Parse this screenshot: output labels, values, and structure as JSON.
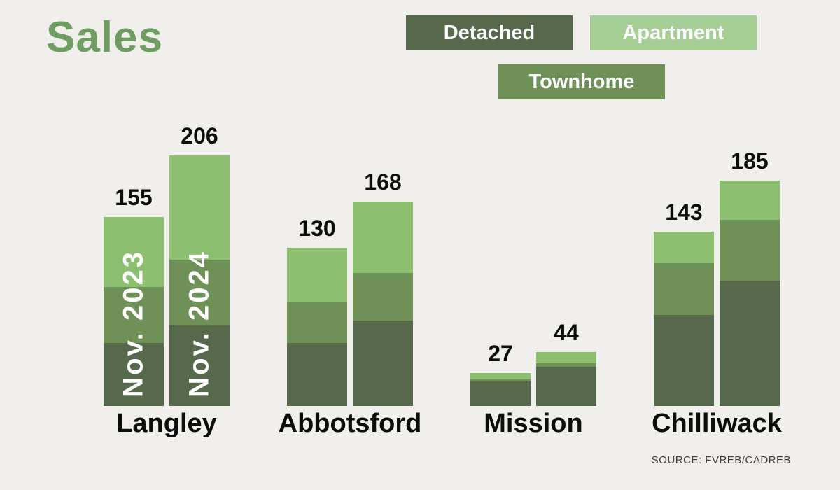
{
  "page": {
    "background": "#f0efec"
  },
  "title": {
    "text": "Sales",
    "color": "#6f9d62"
  },
  "legend": {
    "items": [
      {
        "label": "Detached",
        "color": "#57694b"
      },
      {
        "label": "Apartment",
        "color": "#a6cf96"
      },
      {
        "label": "Townhome",
        "color": "#6e9157"
      }
    ]
  },
  "source": {
    "text": "SOURCE: FVREB/CADREB"
  },
  "chart_data": {
    "type": "bar",
    "stacked": true,
    "title": "Sales",
    "legend_entries": [
      "Detached",
      "Apartment",
      "Townhome"
    ],
    "series_order_bottom_to_top": [
      "Detached",
      "Townhome",
      "Apartment"
    ],
    "series_colors": {
      "Detached": "#57694b",
      "Townhome": "#6e9157",
      "Apartment": "#8cbf70"
    },
    "x_categories": [
      "Langley",
      "Abbotsford",
      "Mission",
      "Chilliwack"
    ],
    "bar_periods": [
      "Nov. 2023",
      "Nov. 2024"
    ],
    "totals_shown": true,
    "groups": [
      {
        "city": "Langley",
        "bars": [
          {
            "period": "Nov. 2023",
            "total": 155,
            "in_bar_label": "Nov. 2023",
            "segments": {
              "Detached": 52,
              "Townhome": 46,
              "Apartment": 57
            }
          },
          {
            "period": "Nov. 2024",
            "total": 206,
            "in_bar_label": "Nov. 2024",
            "segments": {
              "Detached": 66,
              "Townhome": 54,
              "Apartment": 86
            }
          }
        ]
      },
      {
        "city": "Abbotsford",
        "bars": [
          {
            "period": "Nov. 2023",
            "total": 130,
            "segments": {
              "Detached": 52,
              "Townhome": 33,
              "Apartment": 45
            }
          },
          {
            "period": "Nov. 2024",
            "total": 168,
            "segments": {
              "Detached": 70,
              "Townhome": 39,
              "Apartment": 59
            }
          }
        ]
      },
      {
        "city": "Mission",
        "bars": [
          {
            "period": "Nov. 2023",
            "total": 27,
            "segments": {
              "Detached": 20,
              "Townhome": 2,
              "Apartment": 5
            }
          },
          {
            "period": "Nov. 2024",
            "total": 44,
            "segments": {
              "Detached": 32,
              "Townhome": 3,
              "Apartment": 9
            }
          }
        ]
      },
      {
        "city": "Chilliwack",
        "bars": [
          {
            "period": "Nov. 2023",
            "total": 143,
            "segments": {
              "Detached": 75,
              "Townhome": 42,
              "Apartment": 26
            }
          },
          {
            "period": "Nov. 2024",
            "total": 185,
            "segments": {
              "Detached": 103,
              "Townhome": 50,
              "Apartment": 32
            }
          }
        ]
      }
    ]
  }
}
